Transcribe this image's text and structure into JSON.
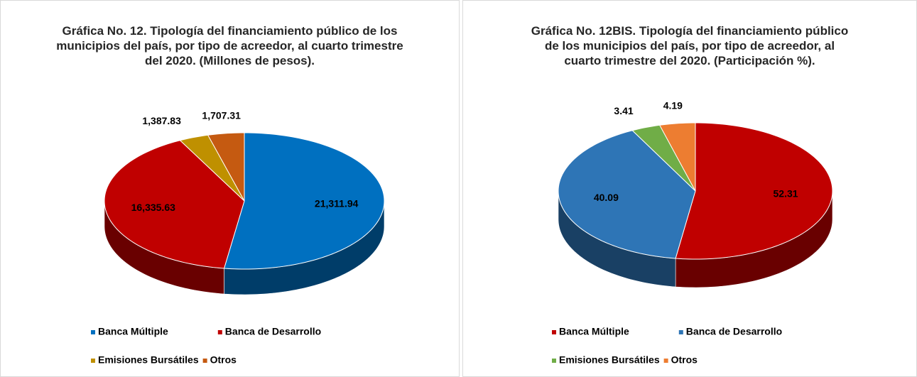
{
  "chart_data": [
    {
      "type": "pie3d",
      "title": "Gráfica No. 12. Tipología del financiamiento público de los municipios del país, por tipo de acreedor, al cuarto trimestre del 2020. (Millones de pesos).",
      "categories": [
        "Banca Múltiple",
        "Banca de Desarrollo",
        "Emisiones Bursátiles",
        "Otros"
      ],
      "values": [
        21311.94,
        16335.63,
        1387.83,
        1707.31
      ],
      "value_labels": [
        "21,311.94",
        "16,335.63",
        "1,387.83",
        "1,707.31"
      ],
      "colors": [
        "#0070c0",
        "#c00000",
        "#bf9000",
        "#c55a11"
      ],
      "legend": "bottom"
    },
    {
      "type": "pie3d",
      "title": "Gráfica No. 12BIS. Tipología del financiamiento público de los municipios del país, por tipo de acreedor, al cuarto trimestre del 2020. (Participación %).",
      "categories": [
        "Banca Múltiple",
        "Banca de Desarrollo",
        "Emisiones Bursátiles",
        "Otros"
      ],
      "values": [
        52.31,
        40.09,
        3.41,
        4.19
      ],
      "colors": [
        "#c00000",
        "#2e75b6",
        "#70ad47",
        "#ed7d31"
      ],
      "legend": "bottom"
    }
  ]
}
